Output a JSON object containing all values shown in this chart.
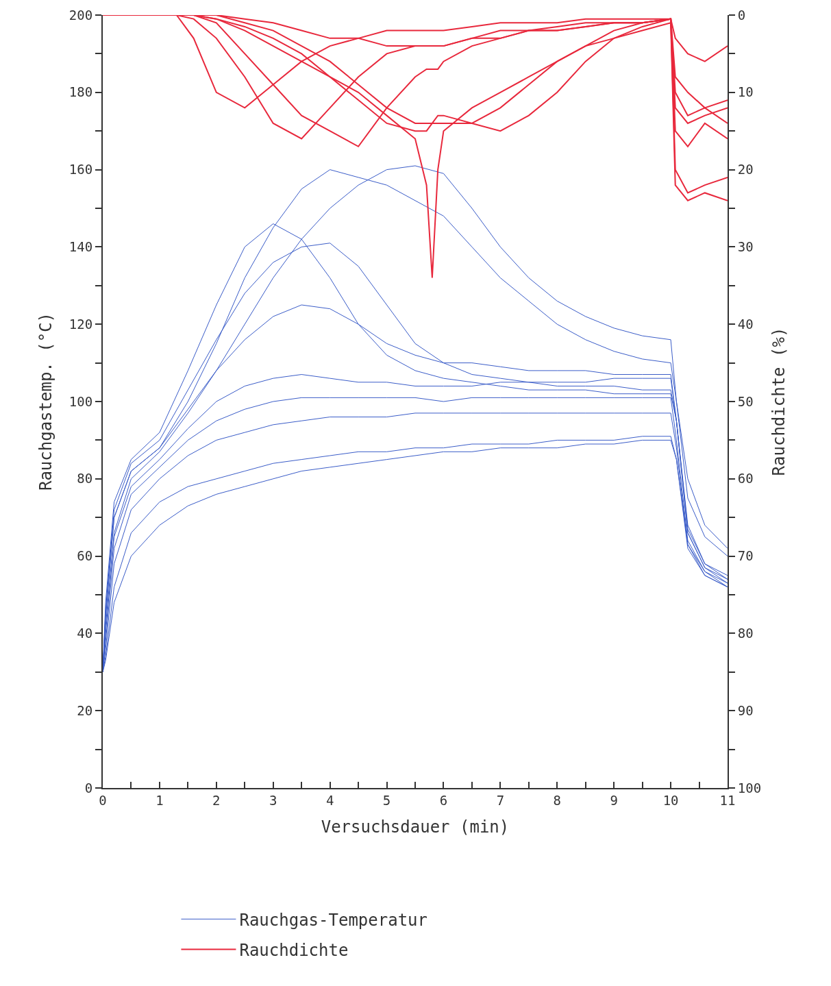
{
  "chart_data": {
    "type": "line",
    "xlabel": "Versuchsdauer (min)",
    "ylabel": "Rauchgastemp. (°C)",
    "y2label": "Rauchdichte (%)",
    "xlim": [
      0,
      11
    ],
    "xticks": [
      0,
      {
        "value": 0.5,
        "label": null
      },
      1,
      {
        "value": 1.5,
        "label": null
      },
      2,
      {
        "value": 2.5,
        "label": null
      },
      3,
      {
        "value": 3.5,
        "label": null
      },
      4,
      {
        "value": 4.5,
        "label": null
      },
      5,
      {
        "value": 5.5,
        "label": null
      },
      6,
      {
        "value": 6.5,
        "label": null
      },
      7,
      {
        "value": 7.5,
        "label": null
      },
      8,
      {
        "value": 8.5,
        "label": null
      },
      9,
      {
        "value": 9.5,
        "label": null
      },
      10,
      {
        "value": 10.5,
        "label": null
      },
      11
    ],
    "ylim": [
      0,
      200
    ],
    "yticks": [
      0,
      {
        "value": 10,
        "label": null
      },
      20,
      {
        "value": 30,
        "label": null
      },
      40,
      {
        "value": 50,
        "label": null
      },
      60,
      {
        "value": 70,
        "label": null
      },
      80,
      {
        "value": 90,
        "label": null
      },
      100,
      {
        "value": 110,
        "label": null
      },
      120,
      {
        "value": 130,
        "label": null
      },
      140,
      {
        "value": 150,
        "label": null
      },
      160,
      {
        "value": 170,
        "label": null
      },
      180,
      {
        "value": 190,
        "label": null
      },
      200
    ],
    "y2lim": [
      100,
      0
    ],
    "y2ticks": [
      0,
      {
        "value": 5,
        "label": null
      },
      10,
      {
        "value": 15,
        "label": null
      },
      20,
      {
        "value": 25,
        "label": null
      },
      30,
      {
        "value": 35,
        "label": null
      },
      40,
      {
        "value": 45,
        "label": null
      },
      50,
      {
        "value": 55,
        "label": null
      },
      60,
      {
        "value": 65,
        "label": null
      },
      70,
      {
        "value": 75,
        "label": null
      },
      80,
      {
        "value": 85,
        "label": null
      },
      90,
      {
        "value": 95,
        "label": null
      },
      100
    ],
    "legend": "bottom",
    "marker": "none",
    "line_style": "solid",
    "series": [
      {
        "name": "Rauchgas-Temperatur",
        "color": "#3a5cc8",
        "x": [
          0,
          0.05,
          0.2,
          0.5,
          1,
          1.5,
          2,
          2.5,
          3,
          3.5,
          4,
          4.5,
          5,
          5.5,
          6,
          6.5,
          7,
          7.5,
          8,
          8.5,
          9,
          9.5,
          10,
          10.1,
          10.3,
          10.6,
          11
        ],
        "values": [
          30,
          45,
          70,
          82,
          88,
          100,
          115,
          132,
          145,
          155,
          160,
          158,
          156,
          152,
          148,
          140,
          132,
          126,
          120,
          116,
          113,
          111,
          110,
          100,
          80,
          68,
          62
        ]
      },
      {
        "color": "#3a5cc8",
        "x": [
          0,
          0.05,
          0.2,
          0.5,
          1,
          1.5,
          2,
          2.5,
          3,
          3.5,
          4,
          4.5,
          5,
          5.5,
          6,
          6.5,
          7,
          7.5,
          8,
          8.5,
          9,
          9.5,
          10,
          10.1,
          10.3,
          10.6,
          11
        ],
        "values": [
          30,
          42,
          66,
          80,
          87,
          97,
          108,
          120,
          132,
          142,
          150,
          156,
          160,
          161,
          159,
          150,
          140,
          132,
          126,
          122,
          119,
          117,
          116,
          100,
          75,
          65,
          60
        ]
      },
      {
        "color": "#3a5cc8",
        "x": [
          0,
          0.05,
          0.2,
          0.5,
          1,
          1.5,
          2,
          2.5,
          3,
          3.5,
          4,
          4.5,
          5,
          5.5,
          6,
          6.5,
          7,
          7.5,
          8,
          8.5,
          9,
          9.5,
          10,
          10.1,
          10.3,
          10.6,
          11
        ],
        "values": [
          30,
          48,
          74,
          85,
          92,
          108,
          125,
          140,
          146,
          142,
          132,
          120,
          112,
          108,
          106,
          105,
          104,
          103,
          103,
          103,
          102,
          102,
          102,
          95,
          68,
          58,
          55
        ]
      },
      {
        "color": "#3a5cc8",
        "x": [
          0,
          0.05,
          0.2,
          0.5,
          1,
          1.5,
          2,
          2.5,
          3,
          3.5,
          4,
          4.5,
          5,
          5.5,
          6,
          6.5,
          7,
          7.5,
          8,
          8.5,
          9,
          9.5,
          10,
          10.1,
          10.3,
          10.6,
          11
        ],
        "values": [
          30,
          46,
          72,
          84,
          90,
          103,
          116,
          128,
          136,
          140,
          141,
          135,
          125,
          115,
          110,
          107,
          106,
          105,
          104,
          104,
          104,
          103,
          103,
          95,
          67,
          58,
          54
        ]
      },
      {
        "color": "#3a5cc8",
        "x": [
          0,
          0.05,
          0.2,
          0.5,
          1,
          1.5,
          2,
          2.5,
          3,
          3.5,
          4,
          4.5,
          5,
          5.5,
          6,
          6.5,
          7,
          7.5,
          8,
          8.5,
          9,
          9.5,
          10,
          10.1,
          10.3,
          10.6,
          11
        ],
        "values": [
          30,
          44,
          70,
          82,
          88,
          98,
          108,
          116,
          122,
          125,
          124,
          120,
          115,
          112,
          110,
          110,
          109,
          108,
          108,
          108,
          107,
          107,
          107,
          95,
          66,
          57,
          54
        ]
      },
      {
        "color": "#3a5cc8",
        "x": [
          0,
          0.05,
          0.2,
          0.5,
          1,
          1.5,
          2,
          2.5,
          3,
          3.5,
          4,
          4.5,
          5,
          5.5,
          6,
          6.5,
          7,
          7.5,
          8,
          8.5,
          9,
          9.5,
          10,
          10.1,
          10.3,
          10.6,
          11
        ],
        "values": [
          30,
          40,
          65,
          78,
          85,
          93,
          100,
          104,
          106,
          107,
          106,
          105,
          105,
          104,
          104,
          104,
          105,
          105,
          105,
          105,
          106,
          106,
          106,
          95,
          66,
          57,
          53
        ]
      },
      {
        "color": "#3a5cc8",
        "x": [
          0,
          0.05,
          0.2,
          0.5,
          1,
          1.5,
          2,
          2.5,
          3,
          3.5,
          4,
          4.5,
          5,
          5.5,
          6,
          6.5,
          7,
          7.5,
          8,
          8.5,
          9,
          9.5,
          10,
          10.1,
          10.3,
          10.6,
          11
        ],
        "values": [
          30,
          38,
          62,
          76,
          83,
          90,
          95,
          98,
          100,
          101,
          101,
          101,
          101,
          101,
          100,
          101,
          101,
          101,
          101,
          101,
          101,
          101,
          101,
          90,
          64,
          56,
          53
        ]
      },
      {
        "color": "#3a5cc8",
        "x": [
          0,
          0.05,
          0.2,
          0.5,
          1,
          1.5,
          2,
          2.5,
          3,
          3.5,
          4,
          4.5,
          5,
          5.5,
          6,
          6.5,
          7,
          7.5,
          8,
          8.5,
          9,
          9.5,
          10,
          10.1,
          10.3,
          10.6,
          11
        ],
        "values": [
          30,
          36,
          58,
          72,
          80,
          86,
          90,
          92,
          94,
          95,
          96,
          96,
          96,
          97,
          97,
          97,
          97,
          97,
          97,
          97,
          97,
          97,
          97,
          88,
          63,
          56,
          52
        ]
      },
      {
        "color": "#3a5cc8",
        "x": [
          0,
          0.05,
          0.2,
          0.5,
          1,
          1.5,
          2,
          2.5,
          3,
          3.5,
          4,
          4.5,
          5,
          5.5,
          6,
          6.5,
          7,
          7.5,
          8,
          8.5,
          9,
          9.5,
          10,
          10.1,
          10.3,
          10.6,
          11
        ],
        "values": [
          30,
          34,
          52,
          66,
          74,
          78,
          80,
          82,
          84,
          85,
          86,
          87,
          87,
          88,
          88,
          89,
          89,
          89,
          90,
          90,
          90,
          91,
          91,
          85,
          62,
          55,
          52
        ]
      },
      {
        "color": "#3a5cc8",
        "x": [
          0,
          0.05,
          0.2,
          0.5,
          1,
          1.5,
          2,
          2.5,
          3,
          3.5,
          4,
          4.5,
          5,
          5.5,
          6,
          6.5,
          7,
          7.5,
          8,
          8.5,
          9,
          9.5,
          10,
          10.1,
          10.3,
          10.6,
          11
        ],
        "values": [
          30,
          33,
          48,
          60,
          68,
          73,
          76,
          78,
          80,
          82,
          83,
          84,
          85,
          86,
          87,
          87,
          88,
          88,
          88,
          89,
          89,
          90,
          90,
          85,
          63,
          55,
          52
        ]
      },
      {
        "name": "Rauchdichte",
        "color": "#e8283c",
        "axis": "y2",
        "x": [
          0,
          1.3,
          1.6,
          2,
          2.5,
          3,
          3.5,
          4,
          4.5,
          5,
          5.5,
          5.7,
          5.8,
          5.9,
          6,
          6.5,
          7,
          7.5,
          8,
          8.5,
          9,
          9.5,
          10,
          10.08,
          10.3,
          10.6,
          11
        ],
        "values": [
          0,
          0,
          3,
          10,
          12,
          9,
          6,
          4,
          3,
          2,
          2,
          2,
          2,
          2,
          2,
          1.5,
          1,
          1,
          1,
          0.5,
          0.5,
          0.5,
          0.5,
          10,
          13,
          12,
          11
        ]
      },
      {
        "color": "#e8283c",
        "axis": "y2",
        "x": [
          0,
          1.3,
          1.6,
          2,
          2.5,
          3,
          3.5,
          4,
          4.5,
          5,
          5.5,
          5.7,
          5.8,
          5.9,
          6,
          6.5,
          7,
          7.5,
          8,
          8.5,
          9,
          9.5,
          10,
          10.08,
          10.3,
          10.6,
          11
        ],
        "values": [
          0,
          0,
          0.5,
          3,
          8,
          14,
          16,
          12,
          8,
          5,
          4,
          4,
          4,
          4,
          4,
          3,
          2,
          2,
          1.5,
          1,
          1,
          1,
          0.5,
          15,
          17,
          14,
          16
        ]
      },
      {
        "color": "#e8283c",
        "axis": "y2",
        "x": [
          0,
          1.3,
          1.6,
          2,
          2.5,
          3,
          3.5,
          4,
          4.5,
          5,
          5.5,
          5.7,
          5.8,
          5.9,
          6,
          6.5,
          7,
          7.5,
          8,
          8.5,
          9,
          9.5,
          10,
          10.08,
          10.3,
          10.6,
          11
        ],
        "values": [
          0,
          0,
          0,
          1,
          5,
          9,
          13,
          15,
          17,
          12,
          8,
          7,
          7,
          7,
          6,
          4,
          3,
          2,
          2,
          1.5,
          1,
          1,
          0.5,
          20,
          23,
          22,
          21
        ]
      },
      {
        "color": "#e8283c",
        "axis": "y2",
        "x": [
          0,
          1.3,
          1.6,
          2,
          2.5,
          3,
          3.5,
          4,
          4.5,
          5,
          5.5,
          5.7,
          5.8,
          5.9,
          6,
          6.5,
          7,
          7.5,
          8,
          8.5,
          9,
          9.5,
          10,
          10.08,
          10.3,
          10.6,
          11
        ],
        "values": [
          0,
          0,
          0,
          0.5,
          2,
          4,
          6,
          8,
          10,
          13,
          16,
          22,
          34,
          20,
          15,
          12,
          10,
          8,
          6,
          4,
          3,
          2,
          1,
          22,
          24,
          23,
          24
        ]
      },
      {
        "color": "#e8283c",
        "axis": "y2",
        "x": [
          0,
          1.3,
          1.6,
          2,
          2.5,
          3,
          3.5,
          4,
          4.5,
          5,
          5.5,
          5.7,
          5.8,
          5.9,
          6,
          6.5,
          7,
          7.5,
          8,
          8.5,
          9,
          9.5,
          10,
          10.08,
          10.3,
          10.6,
          11
        ],
        "values": [
          0,
          0,
          0,
          0.5,
          1.5,
          3,
          5,
          8,
          11,
          14,
          15,
          15,
          14,
          13,
          13,
          14,
          12,
          9,
          6,
          4,
          2,
          1,
          0.5,
          12,
          14,
          13,
          12
        ]
      },
      {
        "color": "#e8283c",
        "axis": "y2",
        "x": [
          0,
          1.3,
          1.6,
          2,
          2.5,
          3,
          3.5,
          4,
          4.5,
          5,
          5.5,
          5.7,
          5.8,
          5.9,
          6,
          6.5,
          7,
          7.5,
          8,
          8.5,
          9,
          9.5,
          10,
          10.08,
          10.3,
          10.6,
          11
        ],
        "values": [
          0,
          0,
          0,
          0,
          1,
          2,
          4,
          6,
          9,
          12,
          14,
          14,
          14,
          14,
          14,
          14,
          15,
          13,
          10,
          6,
          3,
          1.5,
          0.5,
          8,
          10,
          12,
          14
        ]
      },
      {
        "color": "#e8283c",
        "axis": "y2",
        "x": [
          0,
          1.3,
          1.6,
          2,
          2.5,
          3,
          3.5,
          4,
          4.5,
          5,
          5.5,
          5.7,
          5.8,
          5.9,
          6,
          6.5,
          7,
          7.5,
          8,
          8.5,
          9,
          9.5,
          10,
          10.08,
          10.3,
          10.6,
          11
        ],
        "values": [
          0,
          0,
          0,
          0,
          0.5,
          1,
          2,
          3,
          3,
          4,
          4,
          4,
          4,
          4,
          4,
          3,
          3,
          2,
          2,
          1.5,
          1,
          1,
          0.5,
          3,
          5,
          6,
          4
        ]
      }
    ]
  }
}
